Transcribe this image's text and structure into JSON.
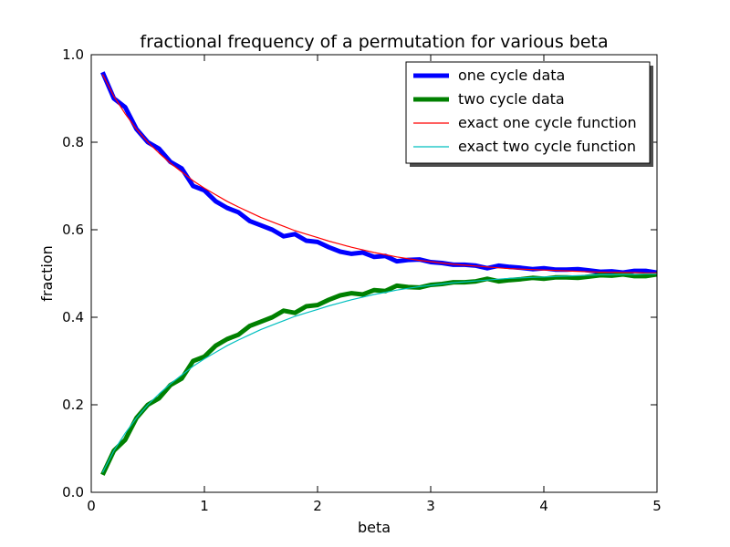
{
  "chart_data": {
    "type": "line",
    "title": "fractional frequency of a permutation for various beta",
    "xlabel": "beta",
    "ylabel": "fraction",
    "xlim": [
      0,
      5
    ],
    "ylim": [
      0.0,
      1.0
    ],
    "xticks": [
      0,
      1,
      2,
      3,
      4,
      5
    ],
    "xtick_labels": [
      "0",
      "1",
      "2",
      "3",
      "4",
      "5"
    ],
    "yticks": [
      0.0,
      0.2,
      0.4,
      0.6,
      0.8,
      1.0
    ],
    "ytick_labels": [
      "0.0",
      "0.2",
      "0.4",
      "0.6",
      "0.8",
      "1.0"
    ],
    "grid": false,
    "legend_position": "top-right",
    "x": [
      0.1,
      0.2,
      0.3,
      0.4,
      0.5,
      0.6,
      0.7,
      0.8,
      0.9,
      1.0,
      1.1,
      1.2,
      1.3,
      1.4,
      1.5,
      1.6,
      1.7,
      1.8,
      1.9,
      2.0,
      2.1,
      2.2,
      2.3,
      2.4,
      2.5,
      2.6,
      2.7,
      2.8,
      2.9,
      3.0,
      3.1,
      3.2,
      3.3,
      3.4,
      3.5,
      3.6,
      3.7,
      3.8,
      3.9,
      4.0,
      4.1,
      4.2,
      4.3,
      4.4,
      4.5,
      4.6,
      4.7,
      4.8,
      4.9,
      5.0
    ],
    "series": [
      {
        "name": "one cycle data",
        "color": "#0000ff",
        "style": "thick",
        "values": [
          0.96,
          0.9,
          0.88,
          0.83,
          0.8,
          0.785,
          0.755,
          0.74,
          0.7,
          0.69,
          0.665,
          0.65,
          0.64,
          0.62,
          0.61,
          0.6,
          0.585,
          0.59,
          0.575,
          0.572,
          0.56,
          0.55,
          0.545,
          0.548,
          0.538,
          0.54,
          0.528,
          0.531,
          0.532,
          0.526,
          0.524,
          0.52,
          0.52,
          0.518,
          0.512,
          0.518,
          0.515,
          0.513,
          0.51,
          0.512,
          0.509,
          0.509,
          0.51,
          0.507,
          0.504,
          0.505,
          0.502,
          0.506,
          0.506,
          0.502
        ]
      },
      {
        "name": "two cycle data",
        "color": "#008000",
        "style": "thick",
        "values": [
          0.04,
          0.095,
          0.12,
          0.17,
          0.2,
          0.215,
          0.245,
          0.26,
          0.3,
          0.31,
          0.335,
          0.35,
          0.36,
          0.38,
          0.39,
          0.4,
          0.415,
          0.41,
          0.425,
          0.428,
          0.44,
          0.45,
          0.455,
          0.452,
          0.462,
          0.46,
          0.472,
          0.469,
          0.468,
          0.474,
          0.476,
          0.48,
          0.48,
          0.482,
          0.488,
          0.482,
          0.485,
          0.487,
          0.49,
          0.488,
          0.491,
          0.491,
          0.49,
          0.493,
          0.496,
          0.495,
          0.498,
          0.494,
          0.494,
          0.498
        ]
      },
      {
        "name": "exact one cycle function",
        "color": "#ff0000",
        "style": "thin",
        "values": [
          0.955,
          0.905,
          0.865,
          0.83,
          0.8,
          0.775,
          0.752,
          0.732,
          0.712,
          0.695,
          0.68,
          0.665,
          0.652,
          0.64,
          0.628,
          0.618,
          0.608,
          0.598,
          0.59,
          0.582,
          0.574,
          0.567,
          0.56,
          0.554,
          0.548,
          0.543,
          0.538,
          0.534,
          0.53,
          0.527,
          0.524,
          0.521,
          0.519,
          0.517,
          0.515,
          0.513,
          0.511,
          0.51,
          0.509,
          0.508,
          0.507,
          0.506,
          0.505,
          0.504,
          0.503,
          0.503,
          0.502,
          0.502,
          0.501,
          0.501
        ]
      },
      {
        "name": "exact  two cycle function",
        "color": "#00bfbf",
        "style": "thin",
        "values": [
          0.045,
          0.095,
          0.135,
          0.17,
          0.2,
          0.225,
          0.248,
          0.268,
          0.288,
          0.305,
          0.32,
          0.335,
          0.348,
          0.36,
          0.372,
          0.382,
          0.392,
          0.402,
          0.41,
          0.418,
          0.426,
          0.433,
          0.44,
          0.446,
          0.452,
          0.457,
          0.462,
          0.466,
          0.47,
          0.473,
          0.476,
          0.479,
          0.481,
          0.483,
          0.485,
          0.487,
          0.489,
          0.49,
          0.491,
          0.492,
          0.493,
          0.494,
          0.495,
          0.496,
          0.497,
          0.497,
          0.498,
          0.498,
          0.499,
          0.499
        ]
      }
    ]
  }
}
